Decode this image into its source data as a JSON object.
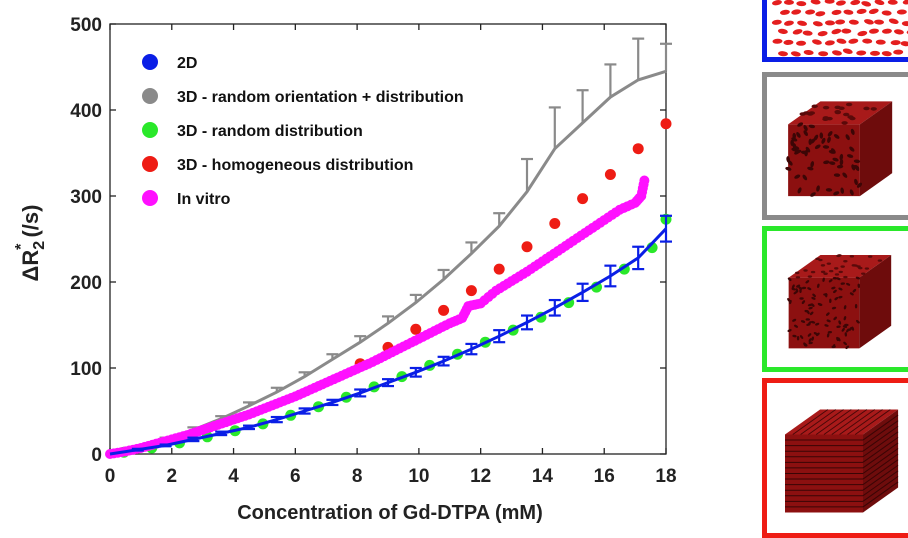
{
  "chart_data": {
    "type": "scatter",
    "xlabel": "Concentration of Gd-DTPA (mM)",
    "ylabel_main": "ΔR",
    "ylabel_sub": "2",
    "ylabel_sup": "*",
    "ylabel_unit": " (/s)",
    "xlim": [
      0,
      18
    ],
    "ylim": [
      0,
      500
    ],
    "x_ticks": [
      0,
      2,
      4,
      6,
      8,
      10,
      12,
      14,
      16,
      18
    ],
    "y_ticks": [
      0,
      100,
      200,
      300,
      400,
      500
    ],
    "grid": false,
    "legend_position": "top-left",
    "series": [
      {
        "name": "2D",
        "color": "#0a1ee6",
        "style": "line-with-errorbars",
        "x": [
          0,
          0.9,
          1.8,
          2.7,
          3.6,
          4.5,
          5.4,
          6.3,
          7.2,
          8.1,
          9.0,
          9.9,
          10.8,
          11.7,
          12.6,
          13.5,
          14.4,
          15.3,
          16.2,
          17.1,
          18.0
        ],
        "y": [
          0,
          5,
          10,
          17,
          24,
          31,
          40,
          50,
          60,
          71,
          83,
          95,
          108,
          122,
          137,
          153,
          170,
          188,
          207,
          228,
          262
        ],
        "err": [
          0,
          1,
          1,
          2,
          2,
          2,
          3,
          3,
          3,
          4,
          4,
          5,
          5,
          6,
          7,
          8,
          9,
          10,
          12,
          13,
          15
        ]
      },
      {
        "name": "3D - random orientation + distribution",
        "color": "#8a8a8a",
        "style": "line-with-errorbars",
        "x": [
          0,
          0.9,
          1.8,
          2.7,
          3.6,
          4.5,
          5.4,
          6.3,
          7.2,
          8.1,
          9.0,
          9.9,
          10.8,
          11.7,
          12.6,
          13.5,
          14.4,
          15.3,
          16.2,
          17.1,
          18.0
        ],
        "y": [
          0,
          8,
          17,
          28,
          41,
          56,
          72,
          90,
          110,
          130,
          152,
          176,
          203,
          233,
          265,
          305,
          355,
          385,
          415,
          435,
          445
        ],
        "err": [
          0,
          1,
          2,
          3,
          3,
          4,
          5,
          5,
          6,
          7,
          8,
          9,
          11,
          13,
          15,
          38,
          48,
          38,
          38,
          48,
          32
        ]
      },
      {
        "name": "3D - random distribution",
        "color": "#2ae82a",
        "style": "markers",
        "x": [
          0.45,
          1.35,
          2.25,
          3.15,
          4.05,
          4.95,
          5.85,
          6.75,
          7.65,
          8.55,
          9.45,
          10.35,
          11.25,
          12.15,
          13.05,
          13.95,
          14.85,
          15.75,
          16.65,
          17.55,
          18.0
        ],
        "y": [
          2,
          7,
          13,
          20,
          27,
          35,
          45,
          55,
          66,
          78,
          90,
          103,
          116,
          130,
          144,
          159,
          176,
          194,
          215,
          240,
          273
        ]
      },
      {
        "name": "3D - homogeneous distribution",
        "color": "#ee1c14",
        "style": "markers",
        "x": [
          8.1,
          9.0,
          9.9,
          10.8,
          11.7,
          12.6,
          13.5,
          14.4,
          15.3,
          16.2,
          17.1,
          18.0
        ],
        "y": [
          105,
          124,
          145,
          167,
          190,
          215,
          241,
          268,
          297,
          325,
          355,
          384
        ]
      },
      {
        "name": "In vitro",
        "color": "#ff10ff",
        "style": "dense-markers",
        "x": [
          0,
          0.5,
          1,
          1.5,
          2,
          2.5,
          3,
          3.5,
          4,
          4.5,
          5,
          5.5,
          6,
          6.5,
          7,
          7.5,
          8,
          8.5,
          9,
          9.5,
          10,
          10.5,
          11,
          11.4,
          11.6,
          12,
          12.5,
          13,
          13.5,
          14,
          14.5,
          15,
          15.5,
          16,
          16.5,
          17,
          17.2,
          17.3
        ],
        "y": [
          0,
          3,
          7,
          12,
          17,
          22,
          28,
          34,
          40,
          46,
          53,
          60,
          67,
          75,
          83,
          91,
          99,
          107,
          116,
          125,
          134,
          143,
          152,
          158,
          172,
          175,
          190,
          201,
          212,
          224,
          236,
          248,
          260,
          272,
          284,
          292,
          300,
          318
        ]
      }
    ]
  },
  "panels": [
    {
      "name": "2d-panel",
      "color": "#0a1ee6"
    },
    {
      "name": "3d-random-orientation-panel",
      "color": "#8a8a8a"
    },
    {
      "name": "3d-random-distribution-panel",
      "color": "#2ae82a"
    },
    {
      "name": "3d-homogeneous-panel",
      "color": "#ee1c14"
    }
  ]
}
